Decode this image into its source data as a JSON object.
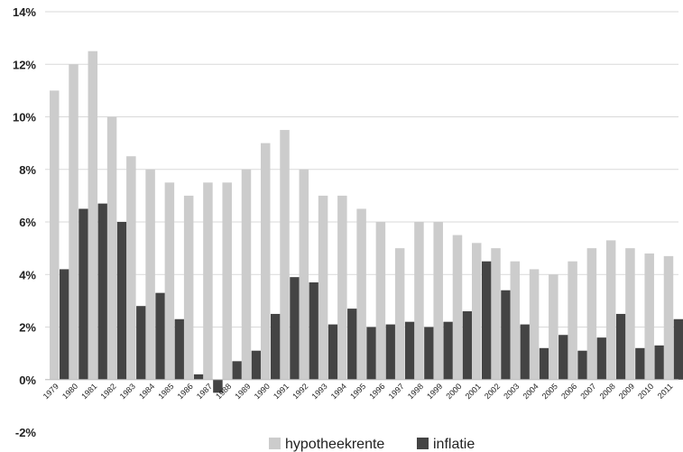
{
  "chart_data": {
    "type": "bar",
    "categories": [
      "1979",
      "1980",
      "1981",
      "1982",
      "1983",
      "1984",
      "1985",
      "1986",
      "1987",
      "1988",
      "1989",
      "1990",
      "1991",
      "1992",
      "1993",
      "1994",
      "1995",
      "1996",
      "1997",
      "1998",
      "1999",
      "2000",
      "2001",
      "2002",
      "2003",
      "2004",
      "2005",
      "2006",
      "2007",
      "2008",
      "2009",
      "2010",
      "2011"
    ],
    "series": [
      {
        "name": "hypotheekrente",
        "color": "#cccccc",
        "values": [
          11.0,
          12.0,
          12.5,
          10.0,
          8.5,
          8.0,
          7.5,
          7.0,
          7.5,
          7.5,
          8.0,
          9.0,
          9.5,
          8.0,
          7.0,
          7.0,
          6.5,
          6.0,
          5.0,
          6.0,
          6.0,
          5.5,
          5.2,
          5.0,
          4.5,
          4.2,
          4.0,
          4.5,
          5.0,
          5.3,
          5.0,
          4.8,
          4.7
        ]
      },
      {
        "name": "inflatie",
        "color": "#444444",
        "values": [
          4.2,
          6.5,
          6.7,
          6.0,
          2.8,
          3.3,
          2.3,
          0.2,
          -0.5,
          0.7,
          1.1,
          2.5,
          3.9,
          3.7,
          2.1,
          2.7,
          2.0,
          2.1,
          2.2,
          2.0,
          2.2,
          2.6,
          4.5,
          3.4,
          2.1,
          1.2,
          1.7,
          1.1,
          1.6,
          2.5,
          1.2,
          1.3,
          2.3
        ]
      }
    ],
    "y_ticks": [
      "-2%",
      "0%",
      "2%",
      "4%",
      "6%",
      "8%",
      "10%",
      "12%",
      "14%"
    ],
    "ylim": [
      -2,
      14
    ],
    "grid": true,
    "legend_position": "bottom"
  }
}
